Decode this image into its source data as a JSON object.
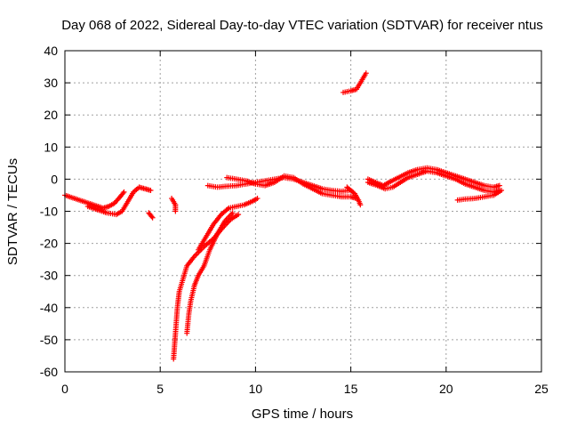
{
  "chart_data": {
    "type": "scatter",
    "title": "Day 068 of 2022, Sidereal Day-to-day VTEC variation (SDTVAR) for receiver ntus",
    "xlabel": "GPS time / hours",
    "ylabel": "SDTVAR / TECUs",
    "xlim": [
      0,
      25
    ],
    "ylim": [
      -60,
      40
    ],
    "xticks": [
      0,
      5,
      10,
      15,
      20,
      25
    ],
    "yticks": [
      -60,
      -50,
      -40,
      -30,
      -20,
      -10,
      0,
      10,
      20,
      30,
      40
    ],
    "grid": true,
    "marker": "+",
    "series": [
      {
        "name": "SDTVAR",
        "color": "#ff0000",
        "segments": [
          [
            [
              0.0,
              -5.0
            ],
            [
              0.5,
              -6.0
            ],
            [
              1.0,
              -7.0
            ],
            [
              1.5,
              -8.0
            ],
            [
              2.0,
              -9.0
            ],
            [
              2.3,
              -8.5
            ],
            [
              2.6,
              -7.5
            ],
            [
              2.9,
              -5.5
            ],
            [
              3.1,
              -4.0
            ]
          ],
          [
            [
              1.2,
              -8.5
            ],
            [
              1.7,
              -9.5
            ],
            [
              2.2,
              -10.5
            ],
            [
              2.7,
              -11.0
            ],
            [
              3.0,
              -10.0
            ],
            [
              3.3,
              -7.0
            ],
            [
              3.6,
              -4.0
            ],
            [
              3.9,
              -2.5
            ],
            [
              4.2,
              -3.0
            ],
            [
              4.5,
              -3.5
            ]
          ],
          [
            [
              4.4,
              -10.5
            ],
            [
              4.6,
              -12.0
            ]
          ],
          [
            [
              5.6,
              -6.0
            ],
            [
              5.8,
              -8.0
            ],
            [
              5.8,
              -10.0
            ]
          ],
          [
            [
              7.0,
              -22.0
            ],
            [
              7.4,
              -18.0
            ],
            [
              7.8,
              -14.0
            ],
            [
              8.2,
              -11.0
            ],
            [
              8.6,
              -9.0
            ],
            [
              9.0,
              -8.5
            ],
            [
              9.4,
              -8.0
            ],
            [
              9.8,
              -7.0
            ],
            [
              10.1,
              -6.0
            ]
          ],
          [
            [
              5.7,
              -56.0
            ],
            [
              5.8,
              -48.0
            ],
            [
              5.9,
              -40.0
            ],
            [
              6.0,
              -35.0
            ],
            [
              6.2,
              -31.0
            ],
            [
              6.4,
              -27.0
            ],
            [
              6.8,
              -24.0
            ],
            [
              7.3,
              -21.0
            ],
            [
              7.8,
              -18.5
            ],
            [
              8.3,
              -15.0
            ],
            [
              8.7,
              -12.5
            ],
            [
              9.1,
              -11.0
            ]
          ],
          [
            [
              6.4,
              -48.0
            ],
            [
              6.5,
              -42.0
            ],
            [
              6.6,
              -38.0
            ],
            [
              6.8,
              -33.0
            ],
            [
              7.0,
              -30.0
            ],
            [
              7.3,
              -27.0
            ],
            [
              7.6,
              -22.0
            ],
            [
              8.0,
              -17.0
            ],
            [
              8.4,
              -13.0
            ],
            [
              8.8,
              -10.5
            ]
          ],
          [
            [
              7.5,
              -2.0
            ],
            [
              8.0,
              -2.5
            ],
            [
              8.5,
              -2.2
            ],
            [
              9.0,
              -2.0
            ],
            [
              9.5,
              -1.5
            ],
            [
              10.0,
              -1.0
            ],
            [
              10.5,
              -0.5
            ],
            [
              11.0,
              0.0
            ],
            [
              11.5,
              0.5
            ],
            [
              12.0,
              0.0
            ],
            [
              12.5,
              -1.0
            ],
            [
              13.0,
              -2.0
            ],
            [
              13.5,
              -3.0
            ],
            [
              14.0,
              -3.5
            ],
            [
              14.5,
              -3.8
            ],
            [
              15.0,
              -3.5
            ]
          ],
          [
            [
              8.5,
              0.5
            ],
            [
              9.0,
              0.0
            ],
            [
              9.5,
              -0.5
            ],
            [
              10.0,
              -1.5
            ],
            [
              10.5,
              -2.0
            ],
            [
              11.0,
              -1.0
            ],
            [
              11.5,
              1.0
            ],
            [
              12.0,
              0.5
            ],
            [
              12.5,
              -1.5
            ],
            [
              13.0,
              -3.0
            ],
            [
              13.5,
              -4.5
            ],
            [
              14.0,
              -5.0
            ],
            [
              14.5,
              -5.5
            ],
            [
              15.0,
              -5.5
            ],
            [
              15.3,
              -6.0
            ]
          ],
          [
            [
              14.8,
              -2.5
            ],
            [
              15.2,
              -4.5
            ],
            [
              15.4,
              -6.5
            ],
            [
              15.5,
              -8.0
            ]
          ],
          [
            [
              14.6,
              27.0
            ],
            [
              15.0,
              27.5
            ],
            [
              15.3,
              28.0
            ],
            [
              15.5,
              30.0
            ],
            [
              15.7,
              32.0
            ],
            [
              15.8,
              33.0
            ]
          ],
          [
            [
              15.9,
              0.0
            ],
            [
              16.3,
              -1.0
            ],
            [
              16.7,
              -2.0
            ],
            [
              17.0,
              -1.0
            ],
            [
              17.5,
              0.5
            ],
            [
              18.0,
              2.0
            ],
            [
              18.5,
              3.0
            ],
            [
              19.0,
              3.5
            ],
            [
              19.5,
              3.0
            ],
            [
              20.0,
              2.0
            ],
            [
              20.5,
              1.0
            ],
            [
              21.0,
              0.0
            ],
            [
              21.5,
              -1.0
            ],
            [
              22.0,
              -2.0
            ],
            [
              22.5,
              -2.5
            ],
            [
              22.8,
              -2.0
            ]
          ],
          [
            [
              15.9,
              -1.0
            ],
            [
              16.4,
              -2.0
            ],
            [
              16.8,
              -3.0
            ],
            [
              17.2,
              -2.5
            ],
            [
              17.6,
              -1.0
            ],
            [
              18.0,
              0.5
            ],
            [
              18.5,
              1.5
            ],
            [
              19.0,
              2.5
            ],
            [
              19.5,
              2.0
            ],
            [
              20.0,
              1.0
            ],
            [
              20.5,
              0.0
            ],
            [
              21.0,
              -1.5
            ],
            [
              21.5,
              -2.5
            ],
            [
              22.0,
              -3.5
            ],
            [
              22.5,
              -4.0
            ],
            [
              22.8,
              -3.5
            ]
          ],
          [
            [
              20.6,
              -6.5
            ],
            [
              21.0,
              -6.2
            ],
            [
              21.5,
              -6.0
            ],
            [
              22.0,
              -5.5
            ],
            [
              22.5,
              -5.0
            ],
            [
              22.9,
              -3.5
            ]
          ]
        ]
      }
    ]
  }
}
